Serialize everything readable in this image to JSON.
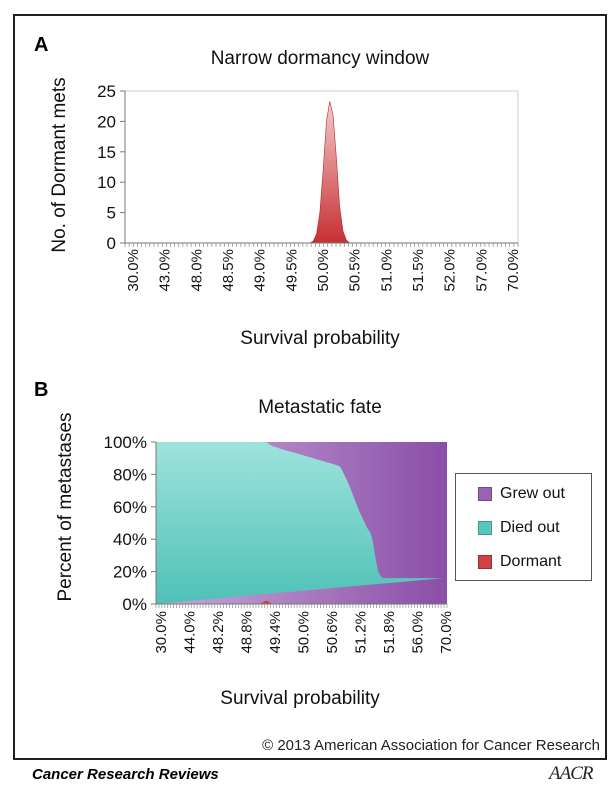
{
  "panel_a": {
    "letter": "A"
  },
  "panel_b": {
    "letter": "B"
  },
  "colors": {
    "grew_out": "#9b62b3",
    "died_out": "#55c7bd",
    "dormant": "#cf4143"
  },
  "chart_data": [
    {
      "type": "area",
      "title": "Narrow dormancy window",
      "xlabel": "Survival probability",
      "ylabel": "No. of Dormant mets",
      "ylim": [
        0,
        25
      ],
      "yticks": [
        0,
        5,
        10,
        15,
        20,
        25
      ],
      "x_tick_labels": [
        "30.0%",
        "43.0%",
        "48.0%",
        "48.5%",
        "49.0%",
        "49.5%",
        "50.0%",
        "50.5%",
        "51.0%",
        "51.5%",
        "52.0%",
        "57.0%",
        "70.0%"
      ],
      "grid": false,
      "series": [
        {
          "values": [
            0,
            0,
            0,
            0,
            0,
            0,
            0,
            0,
            0,
            0,
            0,
            0,
            0,
            0,
            0,
            0,
            0,
            0,
            0,
            0,
            0,
            0,
            0,
            0,
            0,
            0,
            0,
            0,
            0,
            0,
            0,
            0,
            0,
            0,
            0,
            0,
            0,
            0,
            0,
            0,
            0,
            0,
            0,
            0,
            0,
            0,
            0,
            0,
            0,
            0,
            0,
            0,
            0,
            0,
            0,
            0,
            0,
            0.3,
            1.5,
            5,
            12,
            20,
            23.3,
            21,
            14,
            6,
            2,
            0.5,
            0,
            0,
            0,
            0,
            0,
            0,
            0,
            0,
            0,
            0,
            0,
            0,
            0,
            0,
            0,
            0,
            0,
            0,
            0,
            0,
            0,
            0,
            0,
            0,
            0,
            0,
            0,
            0,
            0,
            0,
            0,
            0,
            0,
            0,
            0,
            0,
            0,
            0,
            0,
            0,
            0,
            0,
            0,
            0,
            0,
            0,
            0,
            0,
            0,
            0,
            0,
            0
          ]
        }
      ]
    },
    {
      "type": "area",
      "stacked": true,
      "title": "Metastatic fate",
      "xlabel": "Survival probability",
      "ylabel": "Percent of metastases",
      "ylim": [
        0,
        100
      ],
      "y_tick_labels": [
        "0%",
        "20%",
        "40%",
        "60%",
        "80%",
        "100%"
      ],
      "x_tick_labels": [
        "30.0%",
        "44.0%",
        "48.2%",
        "48.8%",
        "49.4%",
        "50.0%",
        "50.6%",
        "51.2%",
        "51.8%",
        "56.0%",
        "70.0%"
      ],
      "grid": false,
      "legend_position": "right",
      "series": [
        {
          "name": "Dormant",
          "values": [
            0,
            0,
            0,
            0,
            0,
            0,
            0,
            0,
            0,
            0,
            0,
            0,
            0,
            0,
            0,
            0,
            0,
            0,
            0,
            0,
            0,
            0,
            0,
            0,
            0,
            0,
            0,
            0,
            0,
            0,
            0,
            0,
            0,
            0,
            0,
            0,
            0,
            0,
            0,
            0,
            0,
            0,
            0,
            0,
            0,
            0,
            0,
            0,
            0,
            0,
            0,
            0,
            0,
            0,
            0,
            0,
            0,
            0,
            0,
            0,
            0,
            0,
            0,
            0,
            0,
            0,
            0,
            0.3,
            0.8,
            1.5,
            2,
            2,
            1.5,
            0.8,
            0.3,
            0,
            0,
            0,
            0,
            0,
            0,
            0,
            0,
            0,
            0,
            0,
            0,
            0,
            0,
            0,
            0,
            0,
            0,
            0,
            0,
            0,
            0,
            0,
            0,
            0,
            0,
            0,
            0,
            0,
            0,
            0,
            0,
            0,
            0,
            0,
            0,
            0,
            0,
            0,
            0,
            0,
            0,
            0,
            0,
            0,
            0,
            0,
            0,
            0,
            0,
            0,
            0,
            0,
            0,
            0,
            0,
            0,
            0,
            0,
            0,
            0,
            0,
            0,
            0,
            0,
            0,
            0,
            0,
            0,
            0,
            0,
            0,
            0,
            0,
            0,
            0,
            0,
            0,
            0,
            0,
            0,
            0,
            0,
            0,
            0,
            0,
            0,
            0,
            0,
            0,
            0,
            0,
            0,
            0,
            0,
            0,
            0,
            0,
            0,
            0,
            0,
            0,
            0,
            0,
            0,
            0,
            0,
            0,
            0,
            0
          ]
        },
        {
          "name": "Died out",
          "values": [
            100,
            100,
            100,
            100,
            100,
            100,
            100,
            100,
            100,
            100,
            100,
            100,
            100,
            100,
            100,
            100,
            100,
            100,
            100,
            100,
            100,
            100,
            100,
            100,
            100,
            100,
            100,
            100,
            100,
            100,
            100,
            100,
            100,
            100,
            100,
            100,
            100,
            100,
            100,
            100,
            100,
            100,
            100,
            100,
            100,
            100,
            100,
            100,
            100,
            100,
            100,
            100,
            100,
            100,
            100,
            100,
            100,
            100,
            100,
            100,
            100,
            100,
            100,
            100,
            100,
            100,
            100,
            99.7,
            99.2,
            98.5,
            98,
            97.6,
            97.4,
            97.4,
            97.4,
            97.2,
            97,
            96.7,
            96.4,
            96,
            95.7,
            95.4,
            95.1,
            94.8,
            94.5,
            94.2,
            94,
            93.8,
            93.5,
            93.2,
            93,
            92.7,
            92.4,
            92.1,
            91.8,
            91.5,
            91.2,
            91,
            90.7,
            90.4,
            90.1,
            89.8,
            89.5,
            89.2,
            89,
            88.7,
            88.4,
            88.1,
            87.8,
            87.5,
            87.2,
            87,
            86.7,
            86.4,
            86.1,
            85.8,
            85.5,
            85.2,
            84.2,
            82.5,
            80.5,
            78.5,
            76.5,
            74.3,
            72,
            69.5,
            67,
            64.5,
            62,
            59.5,
            57,
            55,
            53,
            51,
            49,
            47,
            45.5,
            44,
            41,
            36,
            30,
            25,
            20,
            18,
            17,
            16,
            16,
            16,
            16,
            16,
            16,
            16,
            16,
            16,
            16,
            16,
            16,
            16,
            16,
            16,
            16,
            16,
            16,
            16,
            16,
            16,
            16,
            16,
            16,
            16,
            16,
            16,
            16,
            16,
            16,
            16,
            16,
            16,
            16,
            16,
            16,
            16,
            16,
            16,
            16,
            16,
            16
          ]
        },
        {
          "name": "Grew out",
          "values": []
        }
      ]
    }
  ],
  "footer": {
    "copyright": "© 2013 American Association for Cancer Research",
    "journal": "Cancer Research Reviews",
    "logo": "AACR"
  }
}
